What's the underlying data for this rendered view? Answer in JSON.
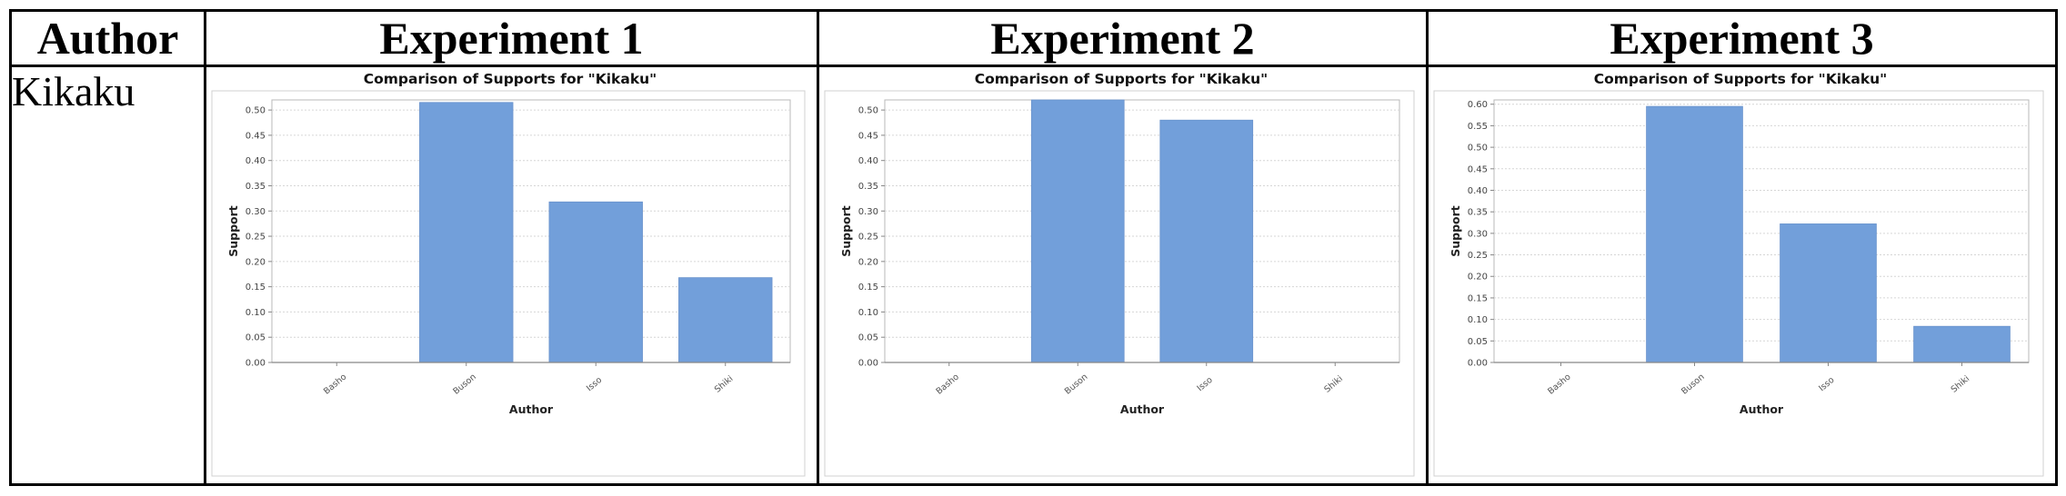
{
  "table": {
    "headers": [
      "Author",
      "Experiment 1",
      "Experiment 2",
      "Experiment 3"
    ],
    "author": "Kikaku"
  },
  "chart_data": [
    {
      "type": "bar",
      "title": "Comparison of Supports for \"Kikaku\"",
      "xlabel": "Author",
      "ylabel": "Support",
      "categories": [
        "Basho",
        "Buson",
        "Isso",
        "Shiki"
      ],
      "values": [
        0.0,
        0.515,
        0.318,
        0.168
      ],
      "ylim": [
        0,
        0.52
      ],
      "yticks": [
        "0.00",
        "0.05",
        "0.10",
        "0.15",
        "0.20",
        "0.25",
        "0.30",
        "0.35",
        "0.40",
        "0.45",
        "0.50"
      ],
      "bar_color": "#729fda",
      "grid": true
    },
    {
      "type": "bar",
      "title": "Comparison of Supports for \"Kikaku\"",
      "xlabel": "Author",
      "ylabel": "Support",
      "categories": [
        "Basho",
        "Buson",
        "Isso",
        "Shiki"
      ],
      "values": [
        0.0,
        0.52,
        0.48,
        0.0
      ],
      "ylim": [
        0,
        0.52
      ],
      "yticks": [
        "0.00",
        "0.05",
        "0.10",
        "0.15",
        "0.20",
        "0.25",
        "0.30",
        "0.35",
        "0.40",
        "0.45",
        "0.50"
      ],
      "bar_color": "#729fda",
      "grid": true
    },
    {
      "type": "bar",
      "title": "Comparison of Supports for \"Kikaku\"",
      "xlabel": "Author",
      "ylabel": "Support",
      "categories": [
        "Basho",
        "Buson",
        "Isso",
        "Shiki"
      ],
      "values": [
        0.0,
        0.595,
        0.322,
        0.084
      ],
      "ylim": [
        0,
        0.61
      ],
      "yticks": [
        "0.00",
        "0.05",
        "0.10",
        "0.15",
        "0.20",
        "0.25",
        "0.30",
        "0.35",
        "0.40",
        "0.45",
        "0.50",
        "0.55",
        "0.60"
      ],
      "bar_color": "#729fda",
      "grid": true
    }
  ]
}
